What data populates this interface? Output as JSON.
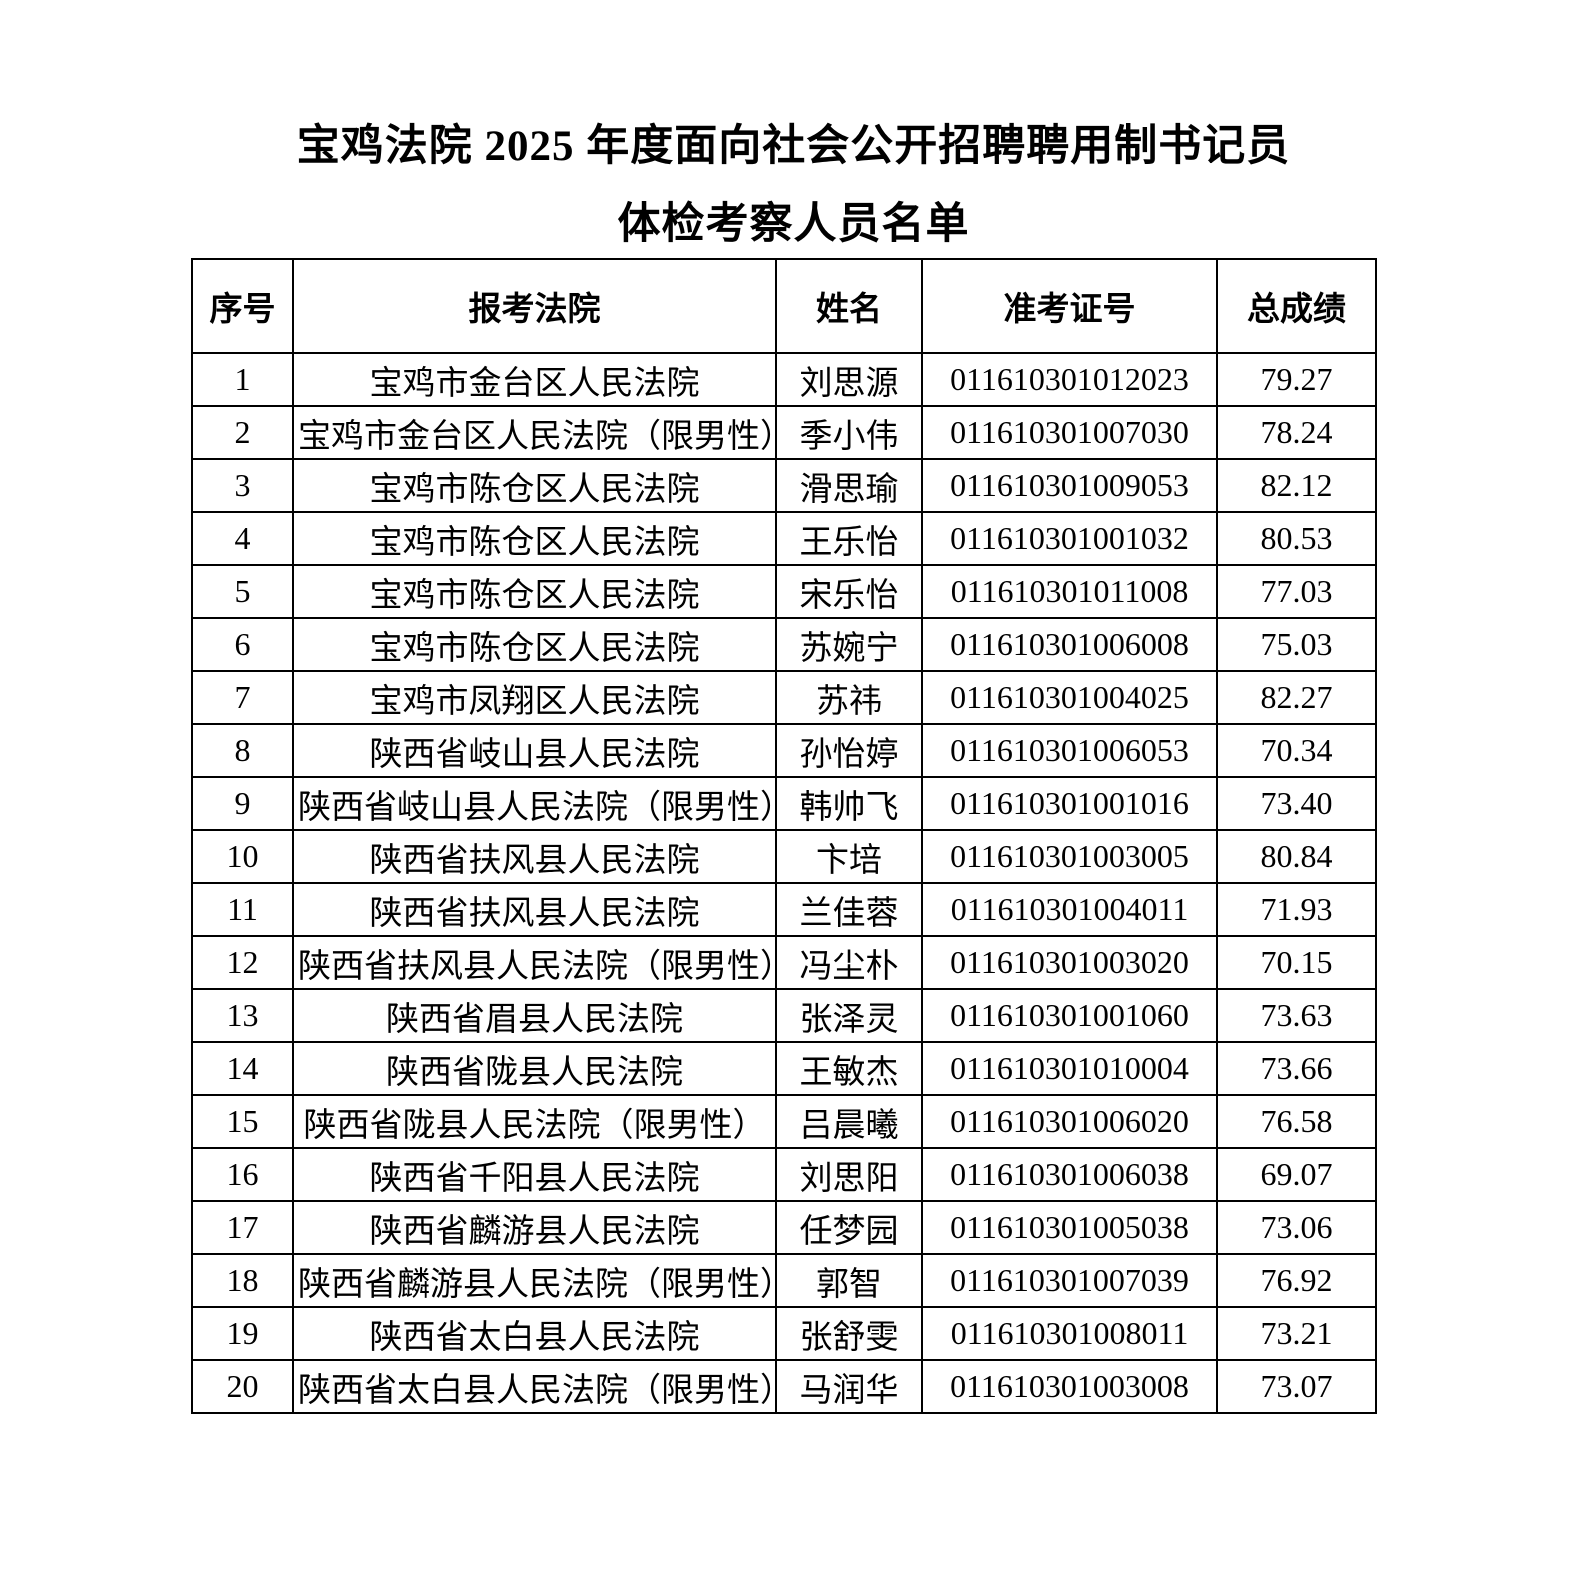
{
  "document": {
    "title_line1": "宝鸡法院 2025 年度面向社会公开招聘聘用制书记员",
    "title_line2": "体检考察人员名单"
  },
  "table": {
    "columns": [
      "序号",
      "报考法院",
      "姓名",
      "准考证号",
      "总成绩"
    ],
    "rows": [
      [
        "1",
        "宝鸡市金台区人民法院",
        "刘思源",
        "011610301012023",
        "79.27"
      ],
      [
        "2",
        "宝鸡市金台区人民法院（限男性）",
        "季小伟",
        "011610301007030",
        "78.24"
      ],
      [
        "3",
        "宝鸡市陈仓区人民法院",
        "滑思瑜",
        "011610301009053",
        "82.12"
      ],
      [
        "4",
        "宝鸡市陈仓区人民法院",
        "王乐怡",
        "011610301001032",
        "80.53"
      ],
      [
        "5",
        "宝鸡市陈仓区人民法院",
        "宋乐怡",
        "011610301011008",
        "77.03"
      ],
      [
        "6",
        "宝鸡市陈仓区人民法院",
        "苏婉宁",
        "011610301006008",
        "75.03"
      ],
      [
        "7",
        "宝鸡市凤翔区人民法院",
        "苏祎",
        "011610301004025",
        "82.27"
      ],
      [
        "8",
        "陕西省岐山县人民法院",
        "孙怡婷",
        "011610301006053",
        "70.34"
      ],
      [
        "9",
        "陕西省岐山县人民法院（限男性）",
        "韩帅飞",
        "011610301001016",
        "73.40"
      ],
      [
        "10",
        "陕西省扶风县人民法院",
        "卞培",
        "011610301003005",
        "80.84"
      ],
      [
        "11",
        "陕西省扶风县人民法院",
        "兰佳蓉",
        "011610301004011",
        "71.93"
      ],
      [
        "12",
        "陕西省扶风县人民法院（限男性）",
        "冯尘朴",
        "011610301003020",
        "70.15"
      ],
      [
        "13",
        "陕西省眉县人民法院",
        "张泽灵",
        "011610301001060",
        "73.63"
      ],
      [
        "14",
        "陕西省陇县人民法院",
        "王敏杰",
        "011610301010004",
        "73.66"
      ],
      [
        "15",
        "陕西省陇县人民法院（限男性）",
        "吕晨曦",
        "011610301006020",
        "76.58"
      ],
      [
        "16",
        "陕西省千阳县人民法院",
        "刘思阳",
        "011610301006038",
        "69.07"
      ],
      [
        "17",
        "陕西省麟游县人民法院",
        "任梦园",
        "011610301005038",
        "73.06"
      ],
      [
        "18",
        "陕西省麟游县人民法院（限男性）",
        "郭智",
        "011610301007039",
        "76.92"
      ],
      [
        "19",
        "陕西省太白县人民法院",
        "张舒雯",
        "011610301008011",
        "73.21"
      ],
      [
        "20",
        "陕西省太白县人民法院（限男性）",
        "马润华",
        "011610301003008",
        "73.07"
      ]
    ]
  },
  "colors": {
    "text": "#000000",
    "background": "#ffffff",
    "border": "#000000"
  }
}
